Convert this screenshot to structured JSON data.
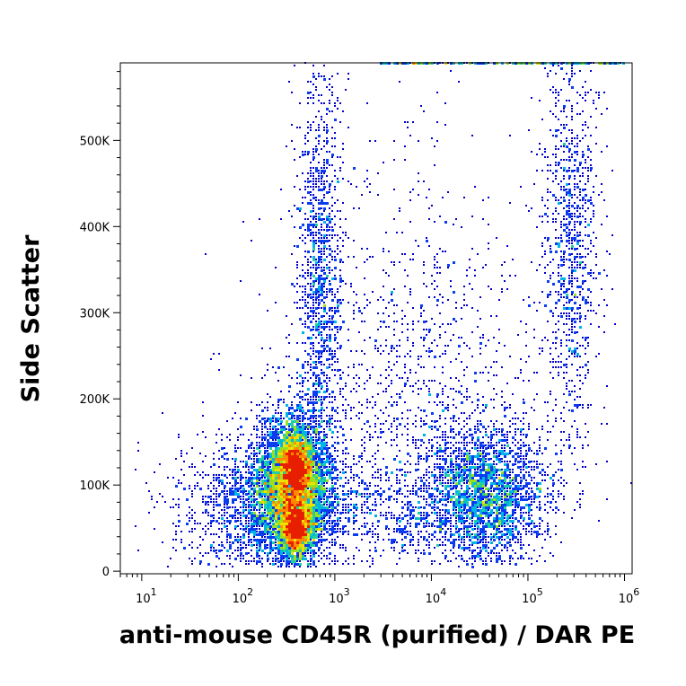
{
  "chart_data": {
    "type": "scatter",
    "title": "",
    "xlabel": "anti-mouse CD45R (purified) / DAR PE",
    "ylabel": "Side Scatter",
    "x_scale": "log",
    "xlim": [
      6,
      1200000
    ],
    "ylim": [
      -3000,
      590000
    ],
    "x_ticks": [
      {
        "value": 10,
        "base": "10",
        "exp": "1"
      },
      {
        "value": 100,
        "base": "10",
        "exp": "2"
      },
      {
        "value": 1000,
        "base": "10",
        "exp": "3"
      },
      {
        "value": 10000,
        "base": "10",
        "exp": "4"
      },
      {
        "value": 100000,
        "base": "10",
        "exp": "5"
      },
      {
        "value": 1000000,
        "base": "10",
        "exp": "6"
      }
    ],
    "y_ticks": [
      {
        "value": 0,
        "label": "0"
      },
      {
        "value": 100000,
        "label": "100K"
      },
      {
        "value": 200000,
        "label": "200K"
      },
      {
        "value": 300000,
        "label": "300K"
      },
      {
        "value": 400000,
        "label": "400K"
      },
      {
        "value": 500000,
        "label": "500K"
      }
    ],
    "grid": false,
    "density_colors": [
      "#0000cc",
      "#0a3cf0",
      "#00b4e6",
      "#20d0a0",
      "#9ae01e",
      "#f0e000",
      "#ff8a00",
      "#e81e00"
    ],
    "populations": [
      {
        "n": 4200,
        "x_log_mean": 2.55,
        "x_log_sd": 0.2,
        "y_mean": 100000,
        "y_sd": 42000
      },
      {
        "n": 1600,
        "x_log_mean": 2.6,
        "x_log_sd": 0.08,
        "y_mean": 50000,
        "y_sd": 16000
      },
      {
        "n": 1400,
        "x_log_mean": 2.6,
        "x_log_sd": 0.08,
        "y_mean": 120000,
        "y_sd": 18000
      },
      {
        "n": 1300,
        "x_log_mean": 2.85,
        "x_log_sd": 0.12,
        "y_mean": 330000,
        "y_sd": 140000
      },
      {
        "n": 1500,
        "x_log_mean": 2.2,
        "x_log_sd": 0.4,
        "y_mean": 70000,
        "y_sd": 45000
      },
      {
        "n": 2500,
        "x_log_mean": 4.55,
        "x_log_sd": 0.32,
        "y_mean": 90000,
        "y_sd": 40000
      },
      {
        "n": 1000,
        "x_log_mean": 5.45,
        "x_log_sd": 0.15,
        "y_mean": 380000,
        "y_sd": 120000
      },
      {
        "n": 1400,
        "x_log_mean": 3.8,
        "x_log_sd": 0.7,
        "y_mean": 200000,
        "y_sd": 140000
      },
      {
        "n": 600,
        "x_log_mean": 3.4,
        "x_log_sd": 0.6,
        "y_mean": 70000,
        "y_sd": 30000
      }
    ],
    "saturation_band": {
      "y": 588000,
      "x_from": 3000,
      "x_to": 1000000
    }
  }
}
